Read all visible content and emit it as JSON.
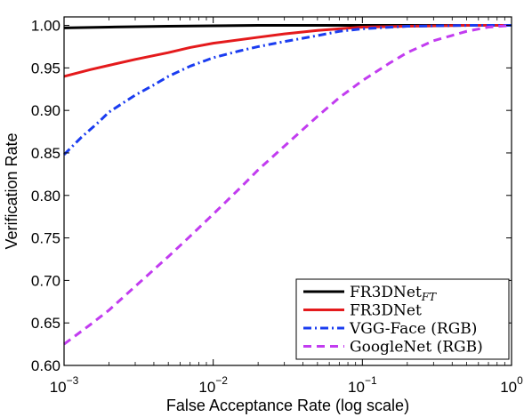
{
  "chart_data": {
    "type": "line",
    "xlabel": "False Acceptance Rate (log scale)",
    "ylabel": "Verification Rate",
    "xscale": "log",
    "xlim": [
      0.001,
      1
    ],
    "ylim": [
      0.6,
      1.01
    ],
    "grid": false,
    "legend_position": "bottom-right",
    "x_ticks": [
      0.001,
      0.01,
      0.1,
      1
    ],
    "x_tick_labels": [
      {
        "base": "10",
        "exp": "−3"
      },
      {
        "base": "10",
        "exp": "−2"
      },
      {
        "base": "10",
        "exp": "−1"
      },
      {
        "base": "10",
        "exp": "0"
      }
    ],
    "y_ticks": [
      0.6,
      0.65,
      0.7,
      0.75,
      0.8,
      0.85,
      0.9,
      0.95,
      1.0
    ],
    "y_tick_labels": [
      "0.60",
      "0.65",
      "0.70",
      "0.75",
      "0.80",
      "0.85",
      "0.90",
      "0.95",
      "1.00"
    ],
    "series": [
      {
        "name": "FR3DNet",
        "name_sub": "FT",
        "color": "#000000",
        "style": "solid",
        "x": [
          0.001,
          0.002,
          0.005,
          0.01,
          0.02,
          0.05,
          0.1,
          0.2,
          0.5,
          1
        ],
        "y": [
          0.997,
          0.998,
          0.999,
          0.9995,
          1.0,
          1.0,
          1.0,
          1.0,
          1.0,
          1.0
        ]
      },
      {
        "name": "FR3DNet",
        "color": "#e41a1c",
        "style": "solid",
        "x": [
          0.001,
          0.0015,
          0.002,
          0.003,
          0.005,
          0.007,
          0.01,
          0.02,
          0.03,
          0.05,
          0.07,
          0.1,
          0.2,
          0.5,
          1
        ],
        "y": [
          0.94,
          0.948,
          0.953,
          0.96,
          0.968,
          0.974,
          0.979,
          0.986,
          0.99,
          0.994,
          0.996,
          0.998,
          0.999,
          1.0,
          1.0
        ]
      },
      {
        "name": "VGG-Face (RGB)",
        "color": "#1a3cf0",
        "style": "dashdot",
        "x": [
          0.001,
          0.0013,
          0.0017,
          0.002,
          0.003,
          0.004,
          0.005,
          0.007,
          0.01,
          0.015,
          0.02,
          0.03,
          0.05,
          0.07,
          0.1,
          0.2,
          0.5,
          1
        ],
        "y": [
          0.848,
          0.868,
          0.886,
          0.898,
          0.918,
          0.93,
          0.94,
          0.952,
          0.962,
          0.97,
          0.975,
          0.981,
          0.988,
          0.993,
          0.996,
          0.999,
          1.0,
          1.0
        ]
      },
      {
        "name": "GoogleNet (RGB)",
        "color": "#c23cf0",
        "style": "dashed",
        "x": [
          0.001,
          0.0015,
          0.002,
          0.003,
          0.005,
          0.007,
          0.01,
          0.015,
          0.02,
          0.03,
          0.05,
          0.07,
          0.1,
          0.15,
          0.2,
          0.3,
          0.5,
          0.7,
          1
        ],
        "y": [
          0.625,
          0.648,
          0.665,
          0.693,
          0.728,
          0.752,
          0.778,
          0.808,
          0.83,
          0.858,
          0.893,
          0.915,
          0.935,
          0.955,
          0.968,
          0.982,
          0.993,
          0.998,
          1.0
        ]
      }
    ]
  }
}
